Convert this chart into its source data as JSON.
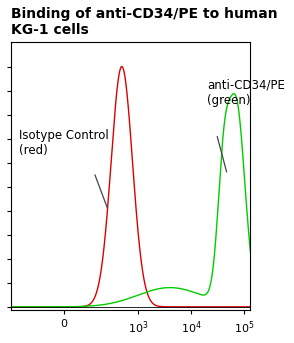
{
  "title_line1": "Binding of anti-CD34/PE to human",
  "title_line2": "KG-1 cells",
  "title_fontsize": 10,
  "bg_color": "#ffffff",
  "plot_bg_color": "#ffffff",
  "red_label": "Isotype Control\n(red)",
  "green_label": "anti-CD34/PE\n(green)",
  "annotation_fontsize": 8.5,
  "line_color_red": "#dd0000",
  "line_color_green": "#00cc00",
  "linthresh": 100,
  "xlim_min": -400,
  "xlim_max": 130000,
  "xticks": [
    0,
    1000,
    10000,
    100000
  ]
}
